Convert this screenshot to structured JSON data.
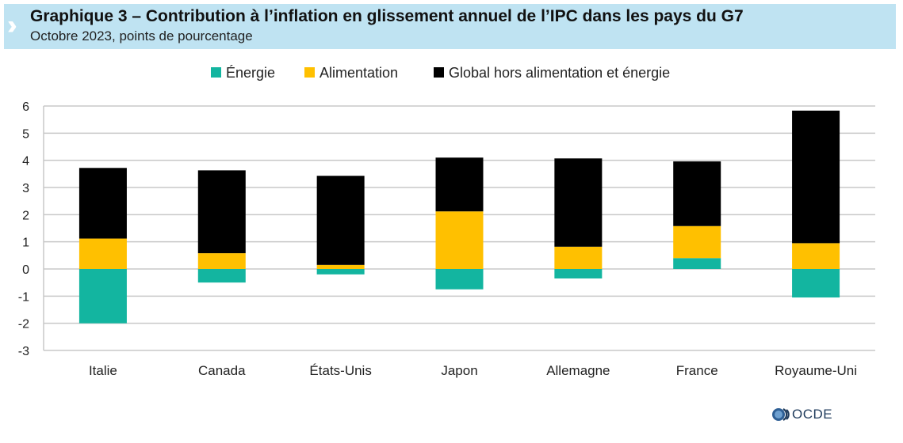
{
  "header": {
    "title": "Graphique 3 – Contribution à l’inflation en glissement annuel de l’IPC dans les pays du G7",
    "subtitle": "Octobre 2023, points de pourcentage"
  },
  "footer": {
    "logo_text": "OCDE"
  },
  "chart_data": {
    "type": "bar",
    "stacked": true,
    "title": "",
    "xlabel": "",
    "ylabel": "",
    "ylim": [
      -3,
      6
    ],
    "yticks": [
      6,
      5,
      4,
      3,
      2,
      1,
      0,
      -1,
      -2,
      -3
    ],
    "grid": true,
    "legend_position": "top",
    "categories": [
      "Italie",
      "Canada",
      "États-Unis",
      "Japon",
      "Allemagne",
      "France",
      "Royaume-Uni"
    ],
    "series": [
      {
        "name": "Énergie",
        "color": "#13b5a0",
        "values": [
          -2.0,
          -0.5,
          -0.2,
          -0.75,
          -0.35,
          0.4,
          -1.05
        ]
      },
      {
        "name": "Alimentation",
        "color": "#ffc000",
        "values": [
          1.12,
          0.58,
          0.15,
          2.12,
          0.82,
          1.18,
          0.95
        ]
      },
      {
        "name": "Global hors alimentation et énergie",
        "color": "#000000",
        "values": [
          2.6,
          3.05,
          3.28,
          1.98,
          3.25,
          2.38,
          4.88
        ]
      }
    ]
  }
}
